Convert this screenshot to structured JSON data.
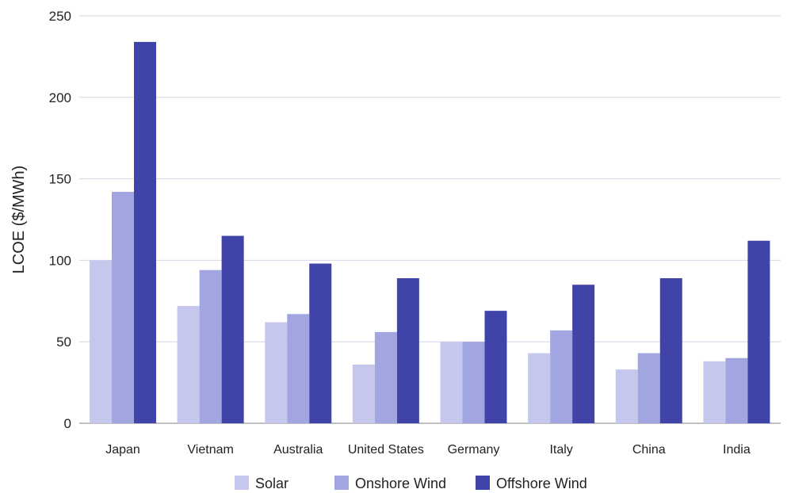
{
  "chart_data": {
    "type": "bar",
    "title": "",
    "xlabel": "",
    "ylabel": "LCOE ($/MWh)",
    "ylim": [
      0,
      250
    ],
    "yticks": [
      0,
      50,
      100,
      150,
      200,
      250
    ],
    "grid": true,
    "legend_position": "bottom",
    "categories": [
      "Japan",
      "Vietnam",
      "Australia",
      "United States",
      "Germany",
      "Italy",
      "China",
      "India"
    ],
    "series": [
      {
        "name": "Solar",
        "color": "#c5c8ec",
        "values": [
          100,
          72,
          62,
          36,
          50,
          43,
          33,
          38
        ]
      },
      {
        "name": "Onshore Wind",
        "color": "#a2a6e0",
        "values": [
          142,
          94,
          67,
          56,
          50,
          57,
          43,
          40
        ]
      },
      {
        "name": "Offshore Wind",
        "color": "#4044a8",
        "values": [
          234,
          115,
          98,
          89,
          69,
          85,
          89,
          112
        ]
      }
    ]
  }
}
